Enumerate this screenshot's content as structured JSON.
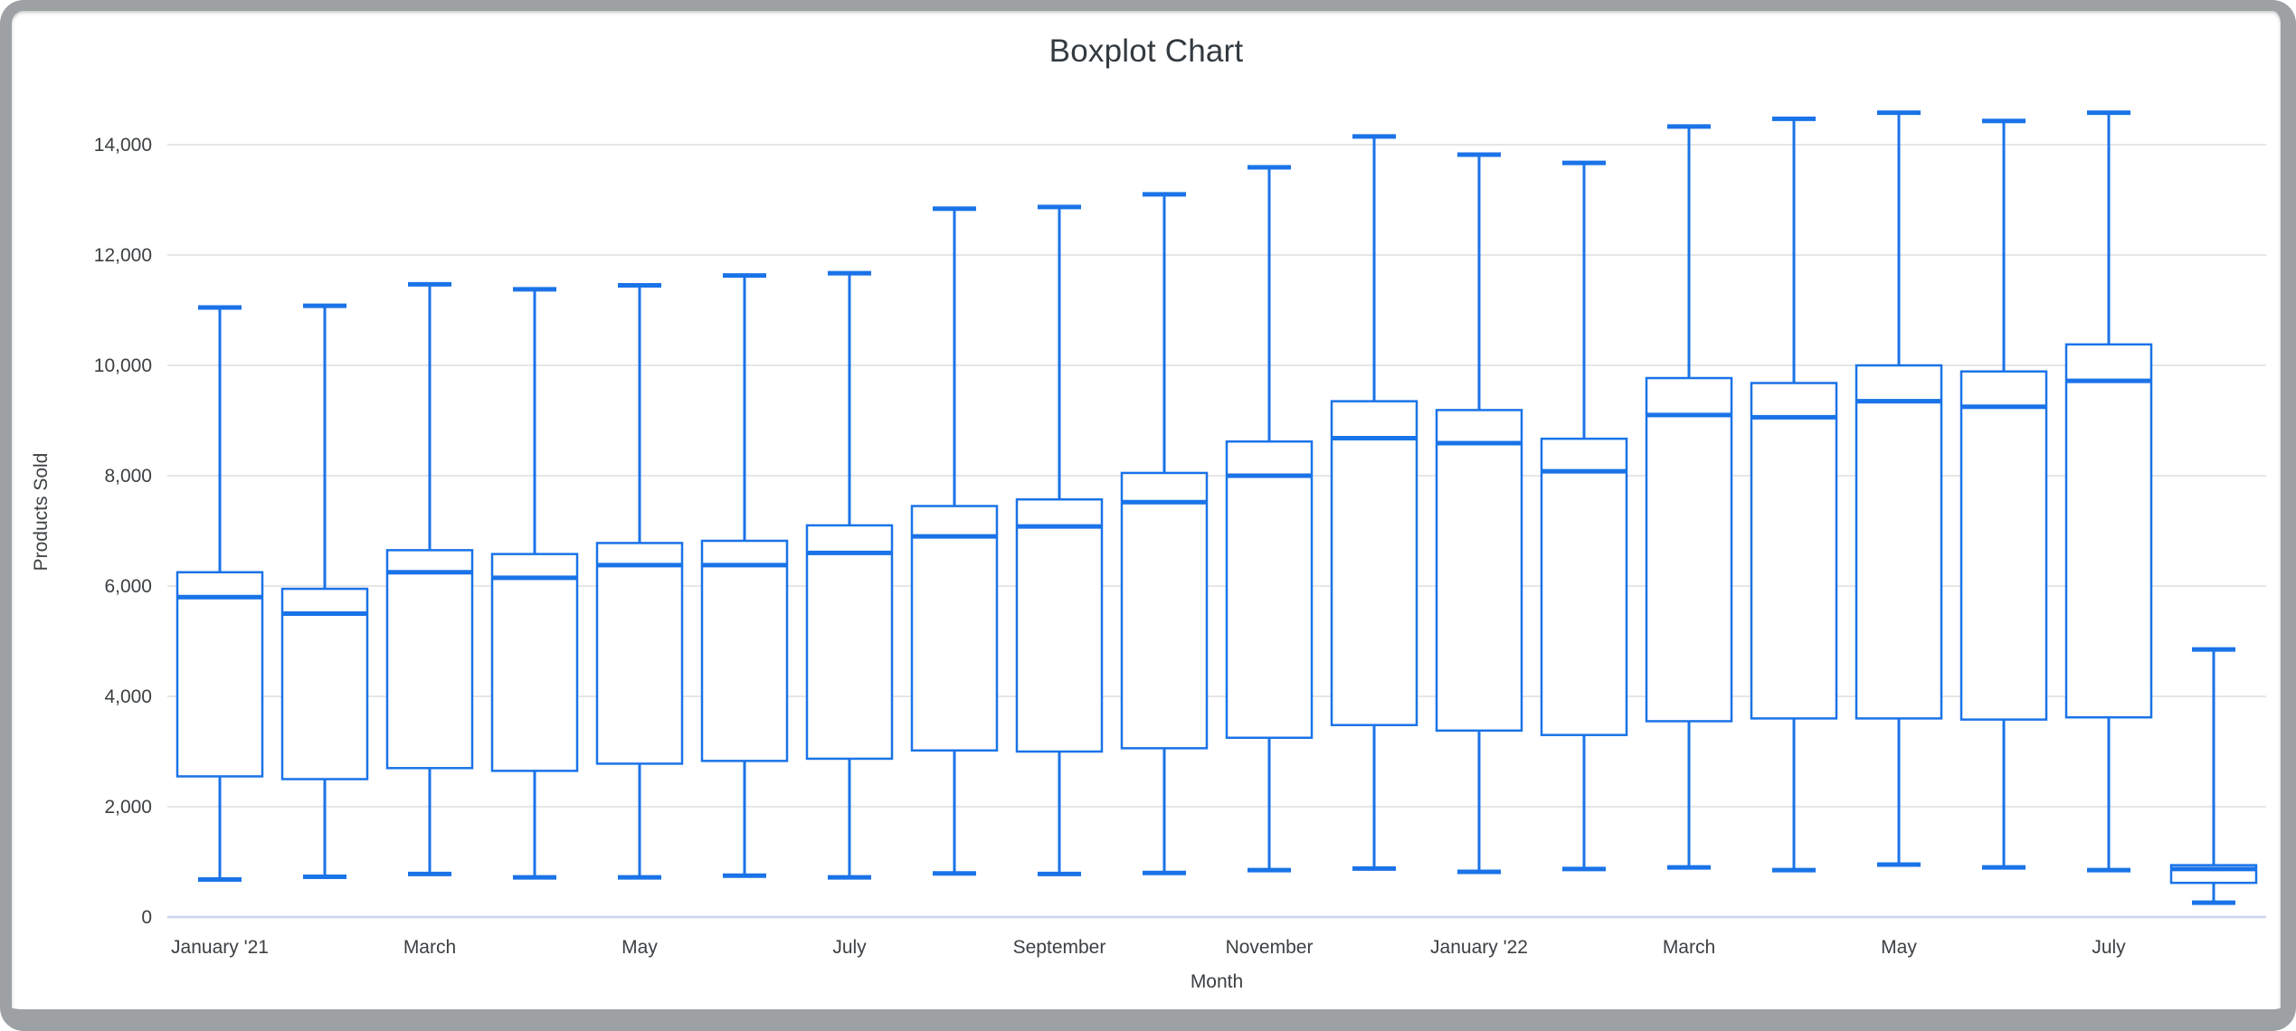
{
  "chart_data": {
    "type": "boxplot",
    "title": "Boxplot Chart",
    "xlabel": "Month",
    "ylabel": "Products Sold",
    "ylim": [
      0,
      14000
    ],
    "grid": true,
    "legend": "none",
    "y_ticks": {
      "values": [
        0,
        2000,
        4000,
        6000,
        8000,
        10000,
        12000,
        14000
      ],
      "labels": [
        "0",
        "2,000",
        "4,000",
        "6,000",
        "8,000",
        "10,000",
        "12,000",
        "14,000"
      ]
    },
    "x_tick_labels": [
      {
        "position": 0,
        "label": "January '21"
      },
      {
        "position": 2,
        "label": "March"
      },
      {
        "position": 4,
        "label": "May"
      },
      {
        "position": 6,
        "label": "July"
      },
      {
        "position": 8,
        "label": "September"
      },
      {
        "position": 10,
        "label": "November"
      },
      {
        "position": 12,
        "label": "January '22"
      },
      {
        "position": 14,
        "label": "March"
      },
      {
        "position": 16,
        "label": "May"
      },
      {
        "position": 18,
        "label": "July"
      }
    ],
    "series": [
      {
        "min": 680,
        "q1": 2550,
        "median": 5800,
        "q3": 6250,
        "max": 11050
      },
      {
        "min": 730,
        "q1": 2500,
        "median": 5500,
        "q3": 5950,
        "max": 11080
      },
      {
        "min": 780,
        "q1": 2700,
        "median": 6250,
        "q3": 6650,
        "max": 11470
      },
      {
        "min": 720,
        "q1": 2650,
        "median": 6150,
        "q3": 6580,
        "max": 11380
      },
      {
        "min": 720,
        "q1": 2780,
        "median": 6380,
        "q3": 6780,
        "max": 11450
      },
      {
        "min": 750,
        "q1": 2830,
        "median": 6380,
        "q3": 6820,
        "max": 11630
      },
      {
        "min": 720,
        "q1": 2870,
        "median": 6600,
        "q3": 7100,
        "max": 11670
      },
      {
        "min": 790,
        "q1": 3020,
        "median": 6900,
        "q3": 7450,
        "max": 12840
      },
      {
        "min": 780,
        "q1": 3000,
        "median": 7080,
        "q3": 7570,
        "max": 12870
      },
      {
        "min": 800,
        "q1": 3060,
        "median": 7520,
        "q3": 8050,
        "max": 13100
      },
      {
        "min": 850,
        "q1": 3250,
        "median": 8000,
        "q3": 8620,
        "max": 13590
      },
      {
        "min": 880,
        "q1": 3480,
        "median": 8680,
        "q3": 9350,
        "max": 14150
      },
      {
        "min": 820,
        "q1": 3380,
        "median": 8590,
        "q3": 9190,
        "max": 13820
      },
      {
        "min": 870,
        "q1": 3300,
        "median": 8080,
        "q3": 8670,
        "max": 13670
      },
      {
        "min": 900,
        "q1": 3550,
        "median": 9100,
        "q3": 9770,
        "max": 14330
      },
      {
        "min": 850,
        "q1": 3600,
        "median": 9060,
        "q3": 9680,
        "max": 14470
      },
      {
        "min": 950,
        "q1": 3600,
        "median": 9350,
        "q3": 10000,
        "max": 14580
      },
      {
        "min": 900,
        "q1": 3580,
        "median": 9250,
        "q3": 9890,
        "max": 14430
      },
      {
        "min": 850,
        "q1": 3620,
        "median": 9720,
        "q3": 10380,
        "max": 14580
      },
      {
        "min": 260,
        "q1": 620,
        "median": 870,
        "q3": 940,
        "max": 4850
      }
    ]
  },
  "colors": {
    "box": "#1a73e8",
    "box_fill": "#ffffff",
    "grid": "#e6e6e6",
    "baseline": "#ccd6eb",
    "title_text": "#333a40",
    "tick_text": "#3c4043",
    "frame": "#9ea1a3",
    "background": "#ffffff"
  }
}
